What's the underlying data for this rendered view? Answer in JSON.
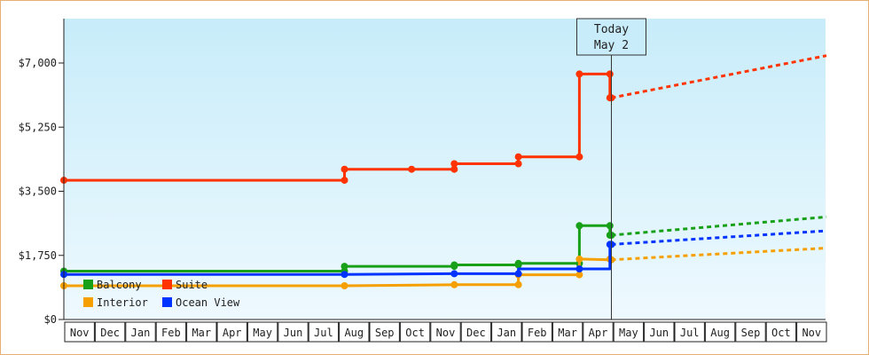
{
  "chart_data": {
    "type": "line",
    "xlabel": "",
    "ylabel": "",
    "y_ticks": [
      0,
      1750,
      3500,
      5250,
      7000
    ],
    "y_tick_labels": [
      "$0",
      "$1,750",
      "$3,500",
      "$5,250",
      "$7,000"
    ],
    "ylim": [
      0,
      7000
    ],
    "month_labels": [
      "Nov",
      "Dec",
      "Jan",
      "Feb",
      "Mar",
      "Apr",
      "May",
      "Jun",
      "Jul",
      "Aug",
      "Sep",
      "Oct",
      "Nov",
      "Dec",
      "Jan",
      "Feb",
      "Mar",
      "Apr",
      "May",
      "Jun",
      "Jul",
      "Aug",
      "Sep",
      "Oct",
      "Nov"
    ],
    "xlim": [
      0,
      25
    ],
    "today": {
      "label_line1": "Today",
      "label_line2": "May 2",
      "x": 17.95
    },
    "grid": false,
    "legend_position": "bottom-left",
    "colors": {
      "balcony": "#18a018",
      "suite": "#ff3300",
      "interior": "#f5a000",
      "ocean_view": "#0033ff",
      "background_top": "#c8ecfa",
      "background_bottom": "#eef9fe"
    },
    "series": [
      {
        "name": "Balcony",
        "key": "balcony",
        "points": [
          [
            0,
            1320
          ],
          [
            9.2,
            1320
          ],
          [
            9.2,
            1450
          ],
          [
            12.8,
            1450
          ],
          [
            12.8,
            1490
          ],
          [
            14.9,
            1490
          ],
          [
            14.9,
            1530
          ],
          [
            16.9,
            1530
          ],
          [
            16.9,
            2560
          ],
          [
            17.9,
            2560
          ],
          [
            17.9,
            2300
          ],
          [
            17.95,
            2300
          ]
        ],
        "markers": [
          [
            0,
            1320
          ],
          [
            9.2,
            1320
          ],
          [
            9.2,
            1450
          ],
          [
            12.8,
            1450
          ],
          [
            12.8,
            1490
          ],
          [
            14.9,
            1490
          ],
          [
            14.9,
            1530
          ],
          [
            16.9,
            1530
          ],
          [
            16.9,
            2560
          ],
          [
            17.9,
            2560
          ],
          [
            17.9,
            2300
          ],
          [
            17.95,
            2300
          ]
        ],
        "forecast": [
          [
            17.95,
            2300
          ],
          [
            25,
            2800
          ]
        ]
      },
      {
        "name": "Suite",
        "key": "suite",
        "points": [
          [
            0,
            3800
          ],
          [
            9.2,
            3800
          ],
          [
            9.2,
            4100
          ],
          [
            11.4,
            4100
          ],
          [
            12.8,
            4100
          ],
          [
            12.8,
            4250
          ],
          [
            14.9,
            4250
          ],
          [
            14.9,
            4440
          ],
          [
            16.9,
            4440
          ],
          [
            16.9,
            6700
          ],
          [
            17.9,
            6700
          ],
          [
            17.9,
            6050
          ],
          [
            17.95,
            6050
          ]
        ],
        "markers": [
          [
            0,
            3800
          ],
          [
            9.2,
            3800
          ],
          [
            9.2,
            4100
          ],
          [
            11.4,
            4100
          ],
          [
            12.8,
            4100
          ],
          [
            12.8,
            4250
          ],
          [
            14.9,
            4250
          ],
          [
            14.9,
            4440
          ],
          [
            16.9,
            4440
          ],
          [
            16.9,
            6700
          ],
          [
            17.9,
            6700
          ],
          [
            17.9,
            6050
          ],
          [
            17.95,
            6050
          ]
        ],
        "forecast": [
          [
            17.95,
            6050
          ],
          [
            25,
            7200
          ]
        ]
      },
      {
        "name": "Interior",
        "key": "interior",
        "points": [
          [
            0,
            920
          ],
          [
            9.2,
            920
          ],
          [
            12.8,
            950
          ],
          [
            14.9,
            950
          ],
          [
            14.9,
            1220
          ],
          [
            16.9,
            1220
          ],
          [
            16.9,
            1650
          ],
          [
            17.95,
            1630
          ]
        ],
        "markers": [
          [
            0,
            920
          ],
          [
            9.2,
            920
          ],
          [
            12.8,
            950
          ],
          [
            14.9,
            950
          ],
          [
            14.9,
            1220
          ],
          [
            16.9,
            1220
          ],
          [
            16.9,
            1650
          ],
          [
            17.9,
            1650
          ],
          [
            17.95,
            1630
          ]
        ],
        "forecast": [
          [
            17.95,
            1630
          ],
          [
            25,
            1950
          ]
        ]
      },
      {
        "name": "Ocean View",
        "key": "ocean_view",
        "points": [
          [
            0,
            1230
          ],
          [
            9.2,
            1230
          ],
          [
            12.8,
            1250
          ],
          [
            14.9,
            1250
          ],
          [
            14.9,
            1380
          ],
          [
            16.9,
            1380
          ],
          [
            17.9,
            1380
          ],
          [
            17.9,
            2050
          ],
          [
            17.95,
            2050
          ]
        ],
        "markers": [
          [
            0,
            1230
          ],
          [
            9.2,
            1230
          ],
          [
            12.8,
            1250
          ],
          [
            14.9,
            1250
          ],
          [
            16.9,
            1380
          ],
          [
            17.9,
            2050
          ],
          [
            17.95,
            2050
          ]
        ],
        "forecast": [
          [
            17.95,
            2050
          ],
          [
            25,
            2420
          ]
        ]
      }
    ],
    "legend": [
      {
        "label": "Balcony",
        "key": "balcony"
      },
      {
        "label": "Suite",
        "key": "suite"
      },
      {
        "label": "Interior",
        "key": "interior"
      },
      {
        "label": "Ocean View",
        "key": "ocean_view"
      }
    ]
  }
}
